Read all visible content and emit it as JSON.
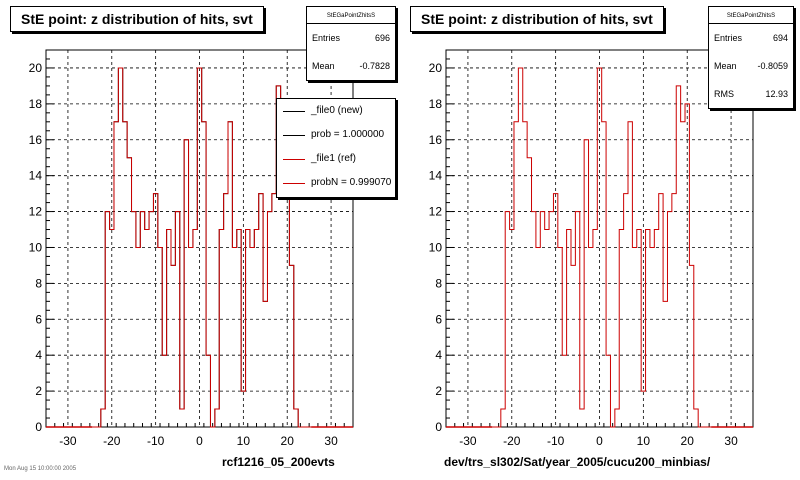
{
  "chart_data": [
    {
      "type": "bar",
      "title": "StE point: z distribution of hits, svt",
      "xlabel": "rcf1216_05_200evts",
      "ylabel": "",
      "xlim": [
        -35,
        35
      ],
      "ylim": [
        0,
        21
      ],
      "xticks": [
        -30,
        -20,
        -10,
        0,
        10,
        20,
        30
      ],
      "yticks": [
        0,
        2,
        4,
        6,
        8,
        10,
        12,
        14,
        16,
        18,
        20
      ],
      "bin_width": 1,
      "grid": true,
      "series": [
        {
          "name": "_file0 (new)",
          "color": "#000000",
          "x": [
            -24,
            -23,
            -22,
            -21,
            -20,
            -19,
            -18,
            -17,
            -16,
            -15,
            -14,
            -13,
            -12,
            -11,
            -10,
            -9,
            -8,
            -7,
            -6,
            -5,
            -4,
            -3,
            -2,
            -1,
            0,
            1,
            2,
            3,
            4,
            5,
            6,
            7,
            8,
            9,
            10,
            11,
            12,
            13,
            14,
            15,
            16,
            17,
            18,
            19,
            20,
            21,
            22,
            23,
            24,
            25
          ],
          "values": [
            0,
            0,
            1,
            12,
            11,
            17,
            20,
            17,
            15,
            12,
            10,
            12,
            11,
            12,
            13,
            10,
            4,
            11,
            9,
            12,
            1,
            16,
            10,
            11,
            20,
            17,
            4,
            0,
            1,
            11,
            13,
            17,
            10,
            11,
            2,
            11,
            10,
            11,
            13,
            7,
            12,
            13,
            19,
            17,
            18,
            9,
            1,
            0,
            0,
            0
          ]
        },
        {
          "name": "_file1 (ref)",
          "color": "#cc0000",
          "x": [
            -24,
            -23,
            -22,
            -21,
            -20,
            -19,
            -18,
            -17,
            -16,
            -15,
            -14,
            -13,
            -12,
            -11,
            -10,
            -9,
            -8,
            -7,
            -6,
            -5,
            -4,
            -3,
            -2,
            -1,
            0,
            1,
            2,
            3,
            4,
            5,
            6,
            7,
            8,
            9,
            10,
            11,
            12,
            13,
            14,
            15,
            16,
            17,
            18,
            19,
            20,
            21,
            22,
            23,
            24,
            25
          ],
          "values": [
            0,
            0,
            1,
            12,
            11,
            17,
            20,
            17,
            15,
            12,
            10,
            12,
            11,
            12,
            13,
            10,
            4,
            11,
            9,
            12,
            1,
            16,
            10,
            11,
            20,
            17,
            4,
            0,
            1,
            11,
            13,
            17,
            10,
            11,
            2,
            11,
            10,
            11,
            13,
            7,
            12,
            13,
            19,
            17,
            18,
            9,
            1,
            0,
            0,
            0
          ]
        }
      ],
      "stats": {
        "name": "StEGaPointZhitsS",
        "entries_label": "Entries",
        "entries": "696",
        "mean_label": "Mean",
        "mean": "-0.7828"
      },
      "legend": [
        {
          "label": "_file0 (new)",
          "color": "#000000"
        },
        {
          "label": "prob = 1.000000",
          "color": "#000000"
        },
        {
          "label": "_file1 (ref)",
          "color": "#cc0000"
        },
        {
          "label": "probN = 0.999070",
          "color": "#cc0000"
        }
      ],
      "legend_position": "top-right"
    },
    {
      "type": "bar",
      "title": "StE point: z distribution of hits, svt",
      "xlabel": "dev/trs_sl302/Sat/year_2005/cucu200_minbias/",
      "ylabel": "",
      "xlim": [
        -35,
        35
      ],
      "ylim": [
        0,
        21
      ],
      "xticks": [
        -30,
        -20,
        -10,
        0,
        10,
        20,
        30
      ],
      "yticks": [
        0,
        2,
        4,
        6,
        8,
        10,
        12,
        14,
        16,
        18,
        20
      ],
      "bin_width": 1,
      "grid": true,
      "series": [
        {
          "name": "",
          "color": "#cc0000",
          "x": [
            -24,
            -23,
            -22,
            -21,
            -20,
            -19,
            -18,
            -17,
            -16,
            -15,
            -14,
            -13,
            -12,
            -11,
            -10,
            -9,
            -8,
            -7,
            -6,
            -5,
            -4,
            -3,
            -2,
            -1,
            0,
            1,
            2,
            3,
            4,
            5,
            6,
            7,
            8,
            9,
            10,
            11,
            12,
            13,
            14,
            15,
            16,
            17,
            18,
            19,
            20,
            21,
            22,
            23,
            24,
            25
          ],
          "values": [
            0,
            0,
            1,
            12,
            11,
            17,
            20,
            17,
            15,
            12,
            10,
            12,
            11,
            12,
            13,
            10,
            4,
            11,
            9,
            12,
            1,
            16,
            10,
            11,
            20,
            17,
            4,
            0,
            1,
            11,
            13,
            17,
            10,
            11,
            2,
            11,
            10,
            11,
            13,
            7,
            12,
            13,
            19,
            17,
            18,
            9,
            1,
            0,
            0,
            0
          ]
        }
      ],
      "stats": {
        "name": "StEGaPointZhitsS",
        "entries_label": "Entries",
        "entries": "694",
        "mean_label": "Mean",
        "mean": "-0.8059",
        "rms_label": "RMS",
        "rms": "12.93"
      }
    }
  ],
  "footer": "Mon Aug 15 10:00:00 2005"
}
